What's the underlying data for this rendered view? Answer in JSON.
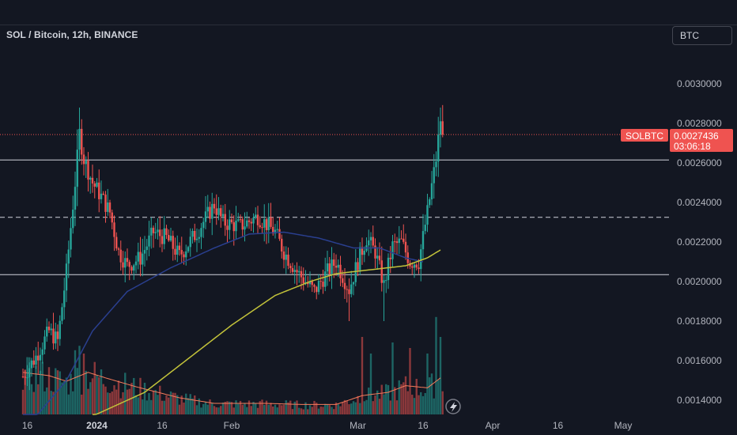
{
  "header": {
    "title": "SOL / Bitcoin, 12h, BINANCE",
    "currency": "BTC"
  },
  "price_tag": {
    "symbol": "SOLBTC",
    "price": "0.0027436",
    "countdown": "03:06:18"
  },
  "colors": {
    "background": "#131722",
    "up": "#26a69a",
    "down": "#ef5350",
    "ma_blue": "#2a3f8f",
    "ma_yellow": "#c2c23a",
    "volume_ma": "#f77c5b",
    "hline": "#d1d4dc"
  },
  "chart_data": {
    "type": "candlestick",
    "y_range": [
      0.00132,
      0.00316
    ],
    "y_ticks": [
      "0.0030000",
      "0.0028000",
      "0.0026000",
      "0.0024000",
      "0.0022000",
      "0.0020000",
      "0.0018000",
      "0.0016000",
      "0.0014000"
    ],
    "x_ticks": [
      {
        "label": "16",
        "bold": false,
        "x_day": 1
      },
      {
        "label": "2024",
        "bold": true,
        "x_day": 17
      },
      {
        "label": "16",
        "bold": false,
        "x_day": 32
      },
      {
        "label": "Feb",
        "bold": false,
        "x_day": 48
      },
      {
        "label": "Mar",
        "bold": false,
        "x_day": 77
      },
      {
        "label": "16",
        "bold": false,
        "x_day": 92
      },
      {
        "label": "Apr",
        "bold": false,
        "x_day": 108
      },
      {
        "label": "16",
        "bold": false,
        "x_day": 123
      },
      {
        "label": "May",
        "bold": false,
        "x_day": 138
      }
    ],
    "horizontal_levels": [
      {
        "price": 0.002615,
        "style": "solid"
      },
      {
        "price": 0.002325,
        "style": "dashed"
      },
      {
        "price": 0.002035,
        "style": "solid"
      }
    ],
    "last_price": 0.0027436,
    "close_anchors": [
      [
        0,
        0.00152
      ],
      [
        3,
        0.00162
      ],
      [
        6,
        0.00175
      ],
      [
        8,
        0.0017
      ],
      [
        10,
        0.00205
      ],
      [
        12,
        0.0025
      ],
      [
        13,
        0.00275
      ],
      [
        14,
        0.00262
      ],
      [
        16,
        0.0025
      ],
      [
        18,
        0.00243
      ],
      [
        20,
        0.00235
      ],
      [
        22,
        0.00215
      ],
      [
        24,
        0.00208
      ],
      [
        27,
        0.00212
      ],
      [
        30,
        0.00225
      ],
      [
        33,
        0.00222
      ],
      [
        36,
        0.00213
      ],
      [
        40,
        0.00225
      ],
      [
        44,
        0.00239
      ],
      [
        46,
        0.0023
      ],
      [
        50,
        0.00228
      ],
      [
        54,
        0.00233
      ],
      [
        58,
        0.00225
      ],
      [
        60,
        0.00215
      ],
      [
        63,
        0.00205
      ],
      [
        67,
        0.00195
      ],
      [
        70,
        0.00205
      ],
      [
        72,
        0.0021
      ],
      [
        75,
        0.00196
      ],
      [
        77,
        0.0021
      ],
      [
        79,
        0.00222
      ],
      [
        81,
        0.00215
      ],
      [
        83,
        0.00198
      ],
      [
        85,
        0.00218
      ],
      [
        87,
        0.0022
      ],
      [
        89,
        0.0021
      ],
      [
        91,
        0.0021
      ],
      [
        93,
        0.00235
      ],
      [
        95,
        0.00262
      ],
      [
        96,
        0.00282
      ],
      [
        96.7,
        0.0027436
      ]
    ],
    "ma_blue_anchors": [
      [
        0,
        0.00124
      ],
      [
        10,
        0.0015
      ],
      [
        16,
        0.00175
      ],
      [
        24,
        0.00195
      ],
      [
        34,
        0.00207
      ],
      [
        44,
        0.00217
      ],
      [
        52,
        0.00224
      ],
      [
        60,
        0.00225
      ],
      [
        68,
        0.00222
      ],
      [
        76,
        0.00217
      ],
      [
        82,
        0.00217
      ],
      [
        88,
        0.00212
      ],
      [
        92,
        0.0021
      ]
    ],
    "ma_yellow_anchors": [
      [
        16,
        0.00132
      ],
      [
        28,
        0.00144
      ],
      [
        38,
        0.00161
      ],
      [
        48,
        0.00178
      ],
      [
        58,
        0.00193
      ],
      [
        66,
        0.002
      ],
      [
        72,
        0.00204
      ],
      [
        80,
        0.00206
      ],
      [
        88,
        0.00208
      ],
      [
        93,
        0.00212
      ],
      [
        96,
        0.00216
      ]
    ],
    "volume_ma_anchors": [
      [
        0,
        0.38
      ],
      [
        6,
        0.35
      ],
      [
        10,
        0.3
      ],
      [
        15,
        0.38
      ],
      [
        19,
        0.33
      ],
      [
        26,
        0.25
      ],
      [
        36,
        0.15
      ],
      [
        44,
        0.1
      ],
      [
        56,
        0.1
      ],
      [
        64,
        0.09
      ],
      [
        72,
        0.09
      ],
      [
        78,
        0.17
      ],
      [
        84,
        0.2
      ],
      [
        88,
        0.26
      ],
      [
        93,
        0.24
      ],
      [
        96,
        0.33
      ]
    ],
    "volume_spikes": [
      [
        12,
        0.58
      ],
      [
        13,
        0.62
      ],
      [
        14,
        0.55
      ],
      [
        78,
        0.7
      ],
      [
        80,
        0.55
      ],
      [
        85,
        0.65
      ],
      [
        89,
        0.6
      ],
      [
        93,
        0.55
      ],
      [
        95,
        0.88
      ],
      [
        96,
        0.7
      ]
    ]
  }
}
